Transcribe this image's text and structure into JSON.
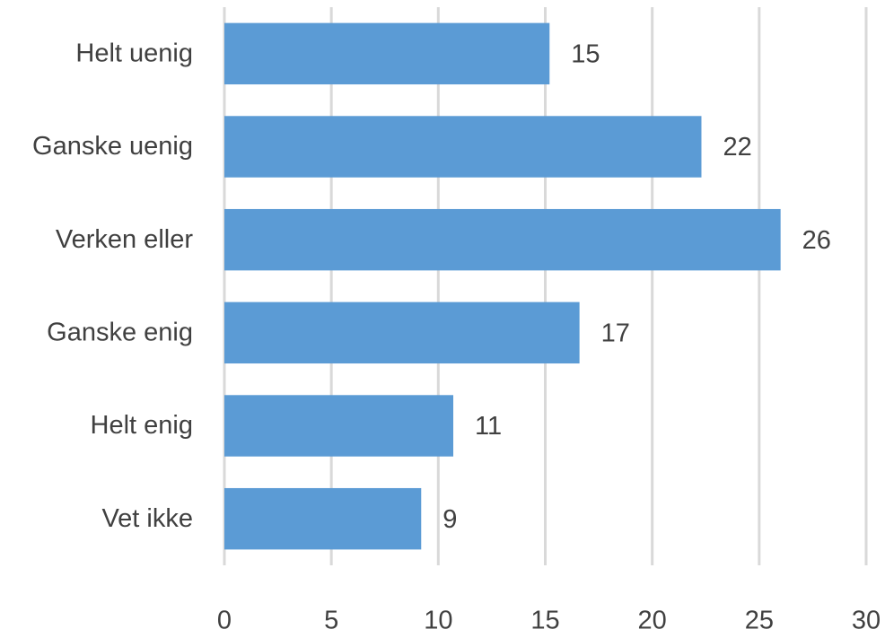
{
  "chart_data": {
    "type": "bar",
    "orientation": "horizontal",
    "categories": [
      "Helt uenig",
      "Ganske uenig",
      "Verken eller",
      "Ganske enig",
      "Helt enig",
      "Vet ikke"
    ],
    "values": [
      15.2,
      22.3,
      26,
      16.6,
      10.7,
      9.2
    ],
    "value_labels": [
      "15",
      "22",
      "26",
      "17",
      "11",
      "9"
    ],
    "color": "#5b9bd5",
    "xlim": [
      0,
      30
    ],
    "xticks": [
      0,
      5,
      10,
      15,
      20,
      25,
      30
    ],
    "grid": true
  }
}
